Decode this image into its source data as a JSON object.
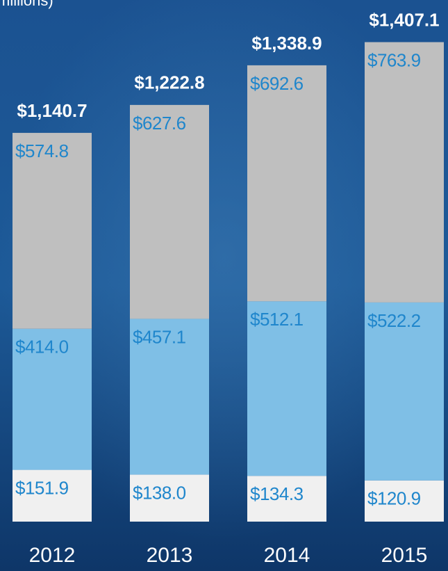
{
  "chart_data": {
    "type": "stacked_bar",
    "subtitle": "millions)",
    "categories": [
      "2012",
      "2013",
      "2014",
      "2015"
    ],
    "series": [
      {
        "color": "#f0f0f0",
        "values": [
          151.9,
          138.0,
          134.3,
          120.9
        ],
        "value_labels": [
          "$151.9",
          "$138.0",
          "$134.3",
          "$120.9"
        ]
      },
      {
        "color": "#7fbfe6",
        "values": [
          414.0,
          457.1,
          512.1,
          522.2
        ],
        "value_labels": [
          "$414.0",
          "$457.1",
          "$512.1",
          "$522.2"
        ]
      },
      {
        "color": "#bfbfbf",
        "values": [
          574.8,
          627.6,
          692.6,
          763.9
        ],
        "value_labels": [
          "$574.8",
          "$627.6",
          "$692.6",
          "$763.9"
        ]
      }
    ],
    "totals": [
      1140.7,
      1222.8,
      1338.9,
      1407.1
    ],
    "total_labels": [
      "$1,140.7",
      "$1,222.8",
      "$1,338.9",
      "$1,407.1"
    ],
    "ylim": [
      0,
      1500
    ]
  }
}
